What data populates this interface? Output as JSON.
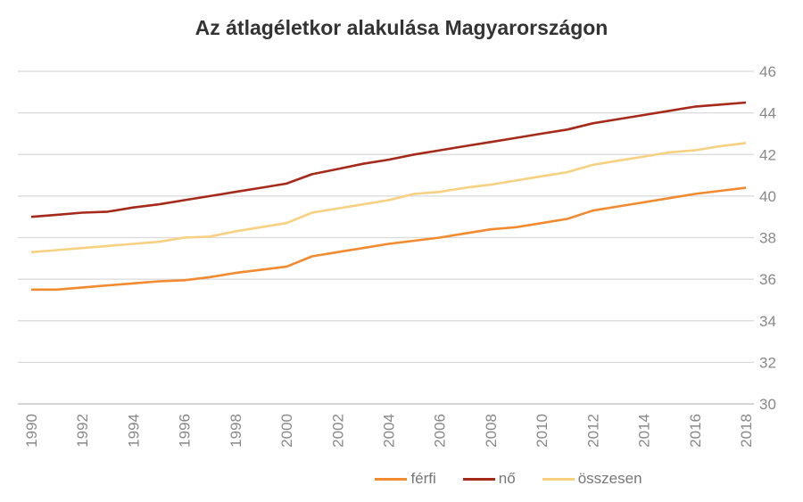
{
  "chart_data": {
    "type": "line",
    "title": "Az átlagéletkor alakulása Magyarországon",
    "xlabel": "",
    "ylabel": "",
    "ylim": [
      30,
      46
    ],
    "yticks": [
      30,
      32,
      34,
      36,
      38,
      40,
      42,
      44,
      46
    ],
    "xticks": [
      1990,
      1992,
      1994,
      1996,
      1998,
      2000,
      2002,
      2004,
      2006,
      2008,
      2010,
      2012,
      2014,
      2016,
      2018
    ],
    "grid": true,
    "legend_position": "bottom",
    "x": [
      1990,
      1991,
      1992,
      1993,
      1994,
      1995,
      1996,
      1997,
      1998,
      1999,
      2000,
      2001,
      2002,
      2003,
      2004,
      2005,
      2006,
      2007,
      2008,
      2009,
      2010,
      2011,
      2012,
      2013,
      2014,
      2015,
      2016,
      2017,
      2018
    ],
    "series": [
      {
        "name": "férfi",
        "color": "#f28a30",
        "values": [
          35.5,
          35.5,
          35.6,
          35.7,
          35.8,
          35.9,
          35.95,
          36.1,
          36.3,
          36.45,
          36.6,
          37.1,
          37.3,
          37.5,
          37.7,
          37.85,
          38.0,
          38.2,
          38.4,
          38.5,
          38.7,
          38.9,
          39.3,
          39.5,
          39.7,
          39.9,
          40.1,
          40.25,
          40.4
        ]
      },
      {
        "name": "nő",
        "color": "#a52a1a",
        "values": [
          39.0,
          39.1,
          39.2,
          39.25,
          39.45,
          39.6,
          39.8,
          40.0,
          40.2,
          40.4,
          40.6,
          41.05,
          41.3,
          41.55,
          41.75,
          42.0,
          42.2,
          42.4,
          42.6,
          42.8,
          43.0,
          43.2,
          43.5,
          43.7,
          43.9,
          44.1,
          44.3,
          44.4,
          44.5
        ]
      },
      {
        "name": "összesen",
        "color": "#f7d080",
        "values": [
          37.3,
          37.4,
          37.5,
          37.6,
          37.7,
          37.8,
          38.0,
          38.05,
          38.3,
          38.5,
          38.7,
          39.2,
          39.4,
          39.6,
          39.8,
          40.1,
          40.2,
          40.4,
          40.55,
          40.75,
          40.95,
          41.15,
          41.5,
          41.7,
          41.9,
          42.1,
          42.2,
          42.4,
          42.55
        ]
      }
    ]
  }
}
